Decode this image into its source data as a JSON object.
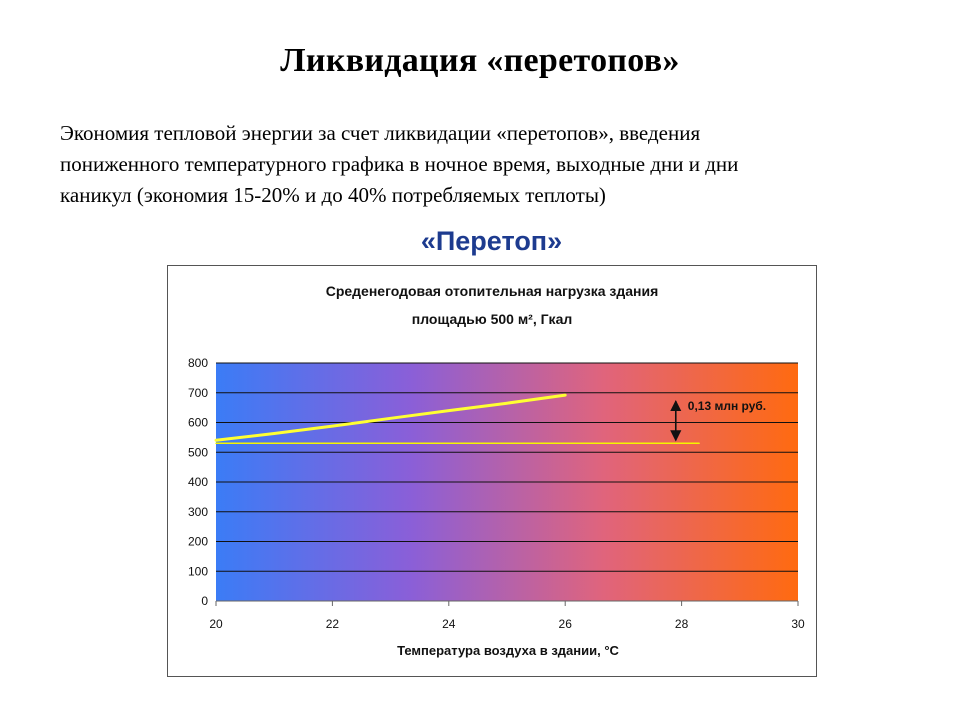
{
  "slide": {
    "title": "Ликвидация «перетопов»",
    "text_lines": [
      "Экономия тепловой энергии за счет ликвидации «перетопов», введения",
      "пониженного температурного графика в ночное время, выходные дни и дни",
      "каникул (экономия 15-20% и до 40% потребляемых теплоты)"
    ],
    "chart_heading": "«Перетоп»"
  },
  "chart_data": {
    "type": "line",
    "title_lines": [
      "Среденегодовая отопительная нагрузка здания",
      "площадью 500 м², Гкал"
    ],
    "xlabel": "Температура воздуха в здании, °C",
    "ylabel": "",
    "xlim": [
      20,
      30
    ],
    "ylim": [
      0,
      800
    ],
    "x_ticks": [
      20,
      22,
      24,
      26,
      28,
      30
    ],
    "y_ticks": [
      0,
      100,
      200,
      300,
      400,
      500,
      600,
      700,
      800
    ],
    "grid": true,
    "background_gradient": [
      "#3b7cf6",
      "#8a5fd8",
      "#e0647c",
      "#ff6a10"
    ],
    "series": [
      {
        "points": [
          [
            20,
            540
          ],
          [
            21,
            563
          ],
          [
            22,
            588
          ],
          [
            23,
            614
          ],
          [
            24,
            640
          ],
          [
            25,
            665
          ],
          [
            26,
            692
          ]
        ],
        "color": "#ffff33",
        "width": 3
      },
      {
        "points": [
          [
            20,
            530
          ],
          [
            28.3,
            530
          ]
        ],
        "color": "#f5f500",
        "width": 1.5
      }
    ],
    "annotation": {
      "label": "0,13 млн руб.",
      "x": 27.9,
      "y_from": 692,
      "y_to": 530
    }
  }
}
